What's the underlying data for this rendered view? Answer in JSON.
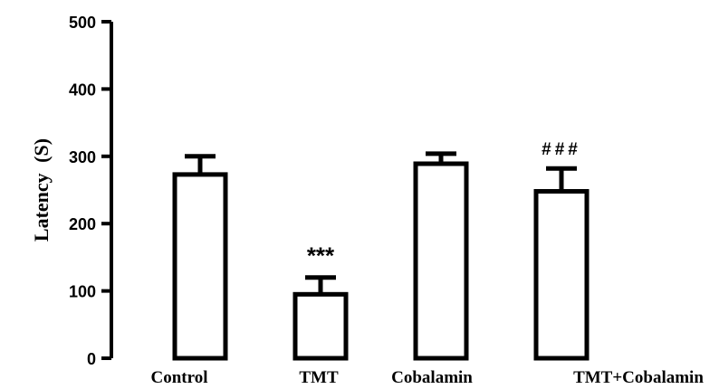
{
  "chart_data": {
    "type": "bar",
    "categories": [
      "Control",
      "TMT",
      "Cobalamin",
      "TMT+Cobalamin"
    ],
    "values": [
      273,
      95,
      289,
      248
    ],
    "errors": [
      27,
      25,
      15,
      34
    ],
    "annotations": [
      "",
      "***",
      "",
      "###"
    ],
    "title": "",
    "xlabel": "",
    "ylabel": "Latency (S)",
    "ylim": [
      0,
      500
    ],
    "yticks": [
      0,
      100,
      200,
      300,
      400,
      500
    ],
    "grid": false,
    "legend": "none",
    "bar_fill": "#ffffff",
    "bar_stroke": "#000000"
  }
}
